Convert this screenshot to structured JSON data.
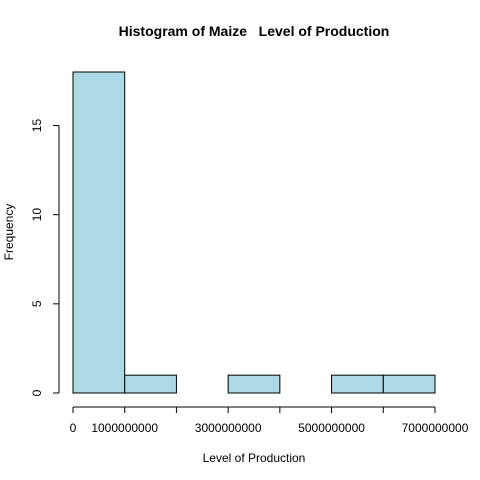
{
  "chart_data": {
    "type": "bar",
    "title": "Histogram of Maize   Level of Production",
    "xlabel": "Level of Production",
    "ylabel": "Frequency",
    "bins": [
      {
        "start": 0,
        "end": 1000000000,
        "count": 18
      },
      {
        "start": 1000000000,
        "end": 2000000000,
        "count": 1
      },
      {
        "start": 2000000000,
        "end": 3000000000,
        "count": 0
      },
      {
        "start": 3000000000,
        "end": 4000000000,
        "count": 1
      },
      {
        "start": 4000000000,
        "end": 5000000000,
        "count": 0
      },
      {
        "start": 5000000000,
        "end": 6000000000,
        "count": 1
      },
      {
        "start": 6000000000,
        "end": 7000000000,
        "count": 1
      }
    ],
    "xlim": [
      0,
      7000000000
    ],
    "ylim": [
      0,
      18
    ],
    "x_ticks": [
      0,
      1000000000,
      2000000000,
      3000000000,
      4000000000,
      5000000000,
      6000000000,
      7000000000
    ],
    "x_tick_labels": [
      "0",
      "1000000000",
      "",
      "3000000000",
      "",
      "5000000000",
      "",
      "7000000000"
    ],
    "y_ticks": [
      0,
      5,
      10,
      15
    ],
    "y_tick_labels": [
      "0",
      "5",
      "10",
      "15"
    ],
    "bar_color": "#add8e6",
    "border_color": "#000000",
    "grid": false
  }
}
